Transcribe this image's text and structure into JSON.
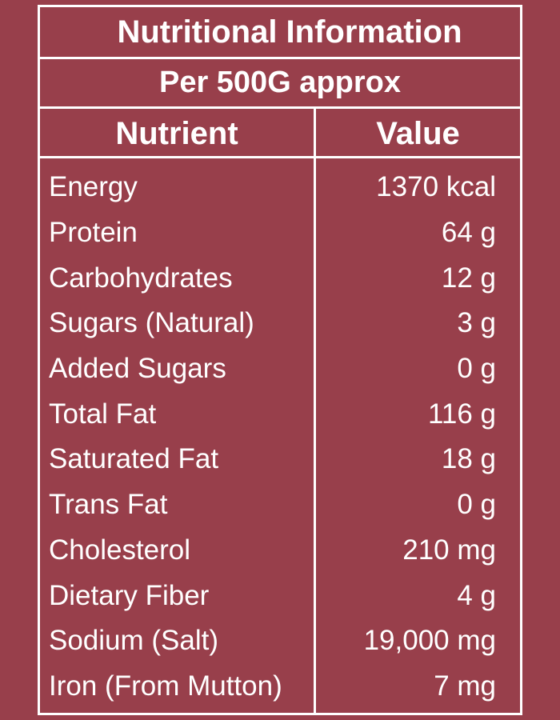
{
  "table": {
    "title": "Nutritional Information",
    "subtitle": "Per 500G approx",
    "header": [
      "Nutrient",
      "Value"
    ],
    "rows": [
      [
        "Energy",
        "1370 kcal"
      ],
      [
        "Protein",
        "64 g"
      ],
      [
        "Carbohydrates",
        "12 g"
      ],
      [
        "Sugars (Natural)",
        "3 g"
      ],
      [
        "Added Sugars",
        "0 g"
      ],
      [
        "Total Fat",
        "116 g"
      ],
      [
        "Saturated Fat",
        "18 g"
      ],
      [
        "Trans Fat",
        "0 g"
      ],
      [
        "Cholesterol",
        "210 mg"
      ],
      [
        "Dietary Fiber",
        "4 g"
      ],
      [
        "Sodium (Salt)",
        "19,000 mg"
      ],
      [
        "Iron (From Mutton)",
        "7 mg"
      ]
    ]
  }
}
